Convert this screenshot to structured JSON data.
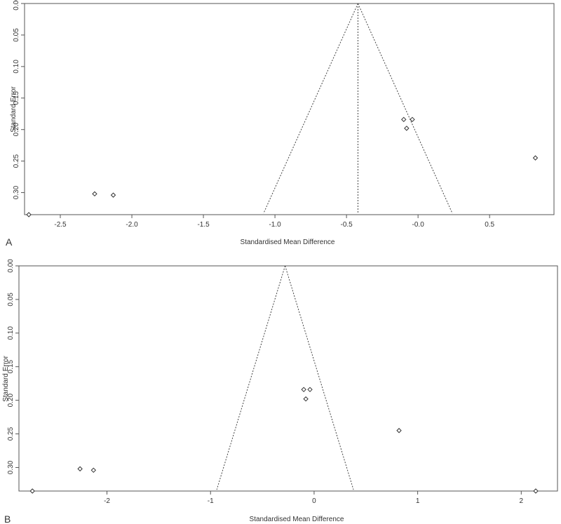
{
  "chart_data": [
    {
      "type": "scatter",
      "panel_label": "A",
      "xlabel": "Standardised Mean Difference",
      "ylabel": "Standard Error",
      "xlim": [
        -2.75,
        0.95
      ],
      "ylim": [
        0.335,
        0.0
      ],
      "y_reversed": true,
      "grid": false,
      "x_ticks": [
        -2.5,
        -2.0,
        -1.5,
        -1.0,
        -0.5,
        0.0,
        0.5
      ],
      "x_tick_labels": [
        "-2.5",
        "-2.0",
        "-1.5",
        "-1.0",
        "-0.5",
        "-0.0",
        "0.5"
      ],
      "y_ticks": [
        0.0,
        0.05,
        0.1,
        0.15,
        0.2,
        0.25,
        0.3
      ],
      "y_tick_labels": [
        "0.00",
        "0.05",
        "0.10",
        "0.15",
        "0.20",
        "0.25",
        "0.30"
      ],
      "funnel": {
        "apex_x": -0.42,
        "apex_y": 0.0,
        "bottom_left_x": -1.08,
        "bottom_right_x": 0.24,
        "bottom_y": 0.333
      },
      "summary_line_x": -0.42,
      "points": [
        {
          "x": -2.72,
          "y": 0.335
        },
        {
          "x": -2.26,
          "y": 0.302
        },
        {
          "x": -2.13,
          "y": 0.304
        },
        {
          "x": -0.1,
          "y": 0.184
        },
        {
          "x": -0.04,
          "y": 0.184
        },
        {
          "x": -0.08,
          "y": 0.198
        },
        {
          "x": 0.82,
          "y": 0.245
        }
      ]
    },
    {
      "type": "scatter",
      "panel_label": "B",
      "xlabel": "Standardised Mean Difference",
      "ylabel": "Standard Error",
      "xlim": [
        -2.85,
        2.35
      ],
      "ylim": [
        0.335,
        0.0
      ],
      "y_reversed": true,
      "grid": false,
      "x_ticks": [
        -2,
        -1,
        0,
        1,
        2
      ],
      "x_tick_labels": [
        "-2",
        "-1",
        "0",
        "1",
        "2"
      ],
      "y_ticks": [
        0.0,
        0.05,
        0.1,
        0.15,
        0.2,
        0.25,
        0.3
      ],
      "y_tick_labels": [
        "0.00",
        "0.05",
        "0.10",
        "0.15",
        "0.20",
        "0.25",
        "0.30"
      ],
      "funnel": {
        "apex_x": -0.28,
        "apex_y": 0.0,
        "bottom_left_x": -0.94,
        "bottom_right_x": 0.38,
        "bottom_y": 0.333
      },
      "summary_line_x": null,
      "points": [
        {
          "x": -2.72,
          "y": 0.335
        },
        {
          "x": -2.26,
          "y": 0.302
        },
        {
          "x": -2.13,
          "y": 0.304
        },
        {
          "x": -0.1,
          "y": 0.184
        },
        {
          "x": -0.04,
          "y": 0.184
        },
        {
          "x": -0.08,
          "y": 0.198
        },
        {
          "x": 0.82,
          "y": 0.245
        },
        {
          "x": 2.14,
          "y": 0.335
        }
      ]
    }
  ]
}
